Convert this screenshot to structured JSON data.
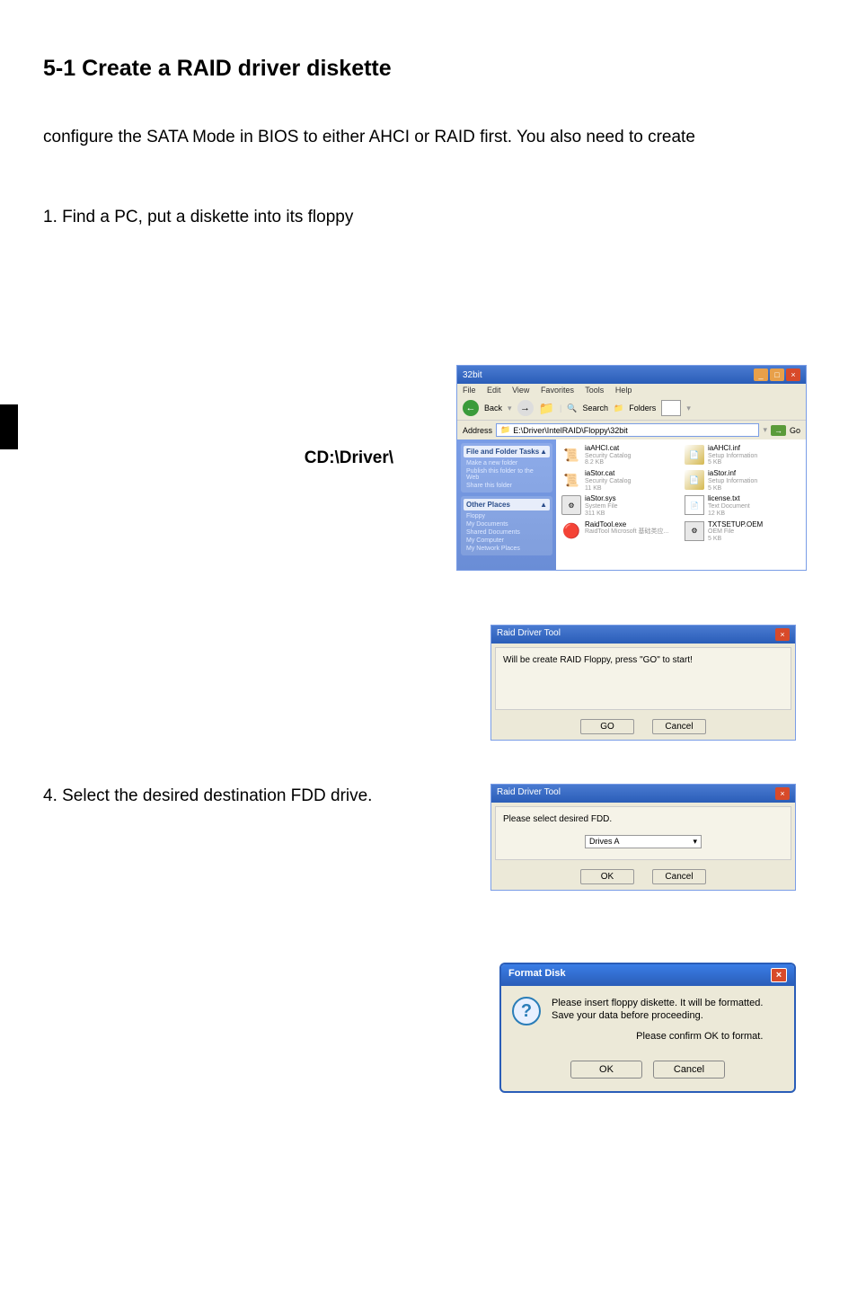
{
  "heading": "5-1 Create a RAID driver diskette",
  "intro": "configure the SATA Mode in BIOS to either AHCI or RAID first. You also need to create",
  "step1": "1. Find a PC, put a diskette into its floppy",
  "step2_bold": "CD:\\Driver\\",
  "step4": "4. Select the desired destination FDD drive.",
  "explorer": {
    "title": "32bit",
    "menu": {
      "file": "File",
      "edit": "Edit",
      "view": "View",
      "favorites": "Favorites",
      "tools": "Tools",
      "help": "Help"
    },
    "toolbar": {
      "back": "Back",
      "search": "Search",
      "folders": "Folders"
    },
    "address_label": "Address",
    "address_path": "E:\\Driver\\IntelRAID\\Floppy\\32bit",
    "go": "Go",
    "sidebar": {
      "panel1_title": "File and Folder Tasks",
      "panel1_items": [
        "Make a new folder",
        "Publish this folder to the Web",
        "Share this folder"
      ],
      "panel2_title": "Other Places",
      "panel2_items": [
        "Floppy",
        "My Documents",
        "Shared Documents",
        "My Computer",
        "My Network Places"
      ]
    },
    "files": [
      {
        "name": "iaAHCI.cat",
        "desc": "Security Catalog",
        "size": "8.2 KB",
        "type": "cat"
      },
      {
        "name": "iaAHCI.inf",
        "desc": "Setup Information",
        "size": "5 KB",
        "type": "inf"
      },
      {
        "name": "iaStor.cat",
        "desc": "Security Catalog",
        "size": "11 KB",
        "type": "cat"
      },
      {
        "name": "iaStor.inf",
        "desc": "Setup Information",
        "size": "5 KB",
        "type": "inf"
      },
      {
        "name": "iaStor.sys",
        "desc": "System File",
        "size": "311 KB",
        "type": "sys"
      },
      {
        "name": "license.txt",
        "desc": "Text Document",
        "size": "12 KB",
        "type": "txt"
      },
      {
        "name": "RaidTool.exe",
        "desc": "RaidTool Microsoft 基础类应...",
        "size": "",
        "type": "exe"
      },
      {
        "name": "TXTSETUP.OEM",
        "desc": "OEM File",
        "size": "5 KB",
        "type": "oem"
      }
    ]
  },
  "raid_tool_1": {
    "title": "Raid Driver Tool",
    "message": "Will be create RAID Floppy, press \"GO\" to start!",
    "btn_go": "GO",
    "btn_cancel": "Cancel"
  },
  "raid_tool_2": {
    "title": "Raid Driver Tool",
    "message": "Please select desired FDD.",
    "dropdown": "Drives A",
    "btn_ok": "OK",
    "btn_cancel": "Cancel"
  },
  "format_disk": {
    "title": "Format Disk",
    "line1": "Please insert floppy diskette.  It will be formatted.",
    "line2": "Save your data before proceeding.",
    "line3": "Please confirm OK to format.",
    "btn_ok": "OK",
    "btn_cancel": "Cancel"
  },
  "colors": {
    "titlebar_start": "#4a7bd1",
    "titlebar_end": "#2a5db8",
    "dialog_bg": "#ece9d8",
    "close_btn": "#d84a2a"
  }
}
